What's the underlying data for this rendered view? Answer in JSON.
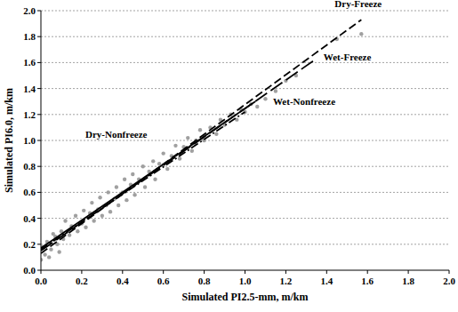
{
  "chart_data": {
    "type": "scatter",
    "x_label": "Simulated PI2.5-mm, m/km",
    "y_label": "Simulated PI6.0, m/km",
    "xlim": [
      0,
      2
    ],
    "ylim": [
      0,
      2
    ],
    "xticks": [
      {
        "value": 0,
        "label": "0.0"
      },
      {
        "value": 0.2,
        "label": "0.2"
      },
      {
        "value": 0.4,
        "label": "0.4"
      },
      {
        "value": 0.6,
        "label": "0.6"
      },
      {
        "value": 0.8,
        "label": "0.8"
      },
      {
        "value": 1,
        "label": "1.0"
      },
      {
        "value": 1.2,
        "label": "1.2"
      },
      {
        "value": 1.4,
        "label": "1.4"
      },
      {
        "value": 1.6,
        "label": "1.6"
      },
      {
        "value": 1.8,
        "label": "1.8"
      },
      {
        "value": 2,
        "label": "2.0"
      }
    ],
    "yticks": [
      {
        "value": 0,
        "label": "0.0"
      },
      {
        "value": 0.2,
        "label": "0.2"
      },
      {
        "value": 0.4,
        "label": "0.4"
      },
      {
        "value": 0.6,
        "label": "0.6"
      },
      {
        "value": 0.8,
        "label": "0.8"
      },
      {
        "value": 1,
        "label": "1.0"
      },
      {
        "value": 1.2,
        "label": "1.2"
      },
      {
        "value": 1.4,
        "label": "1.4"
      },
      {
        "value": 1.6,
        "label": "1.6"
      },
      {
        "value": 1.8,
        "label": "1.8"
      },
      {
        "value": 2,
        "label": "2.0"
      }
    ],
    "grid": "y",
    "series": [
      {
        "type": "scatter",
        "color": "#a0a0a0",
        "marker": "circle",
        "x": [
          0.02,
          0.03,
          0.05,
          0.06,
          0.08,
          0.1,
          0.11,
          0.12,
          0.14,
          0.15,
          0.17,
          0.18,
          0.2,
          0.21,
          0.22,
          0.24,
          0.25,
          0.26,
          0.28,
          0.29,
          0.3,
          0.32,
          0.33,
          0.34,
          0.36,
          0.37,
          0.38,
          0.4,
          0.41,
          0.42,
          0.44,
          0.45,
          0.46,
          0.48,
          0.5,
          0.51,
          0.53,
          0.55,
          0.56,
          0.58,
          0.6,
          0.62,
          0.64,
          0.66,
          0.68,
          0.7,
          0.72,
          0.74,
          0.76,
          0.78,
          0.8,
          0.83,
          0.86,
          0.88,
          0.9,
          0.93,
          0.96,
          0.98,
          1.0,
          1.03,
          1.06,
          1.1,
          1.15,
          1.2,
          1.25,
          1.45,
          1.57,
          0.0,
          0.01,
          0.04,
          0.07,
          0.09
        ],
        "values": [
          0.12,
          0.22,
          0.16,
          0.28,
          0.2,
          0.3,
          0.24,
          0.38,
          0.27,
          0.34,
          0.42,
          0.3,
          0.36,
          0.46,
          0.33,
          0.44,
          0.52,
          0.38,
          0.47,
          0.56,
          0.42,
          0.5,
          0.6,
          0.45,
          0.55,
          0.64,
          0.5,
          0.6,
          0.7,
          0.54,
          0.66,
          0.74,
          0.58,
          0.7,
          0.8,
          0.64,
          0.76,
          0.84,
          0.7,
          0.82,
          0.9,
          0.78,
          0.88,
          0.96,
          0.86,
          0.95,
          1.02,
          0.92,
          1.0,
          1.08,
          1.0,
          1.1,
          1.05,
          1.16,
          1.12,
          1.2,
          1.16,
          1.24,
          1.22,
          1.28,
          1.26,
          1.32,
          1.38,
          1.46,
          1.5,
          1.78,
          1.82,
          0.08,
          0.18,
          0.1,
          0.26,
          0.14
        ]
      },
      {
        "type": "line",
        "name": "Dry-Freeze",
        "color": "#000000",
        "line_style": "dashed",
        "x": [
          0,
          1.57
        ],
        "values": [
          0.13,
          1.93
        ]
      },
      {
        "type": "line",
        "name": "Wet-Freeze",
        "color": "#000000",
        "line_style": "longdash",
        "x": [
          0,
          1.35
        ],
        "values": [
          0.15,
          1.63
        ]
      },
      {
        "type": "line",
        "name": "Wet-Nonfreeze",
        "color": "#000000",
        "line_style": "solid",
        "x": [
          0,
          1.05
        ],
        "values": [
          0.17,
          1.3
        ]
      },
      {
        "type": "line",
        "name": "Dry-Nonfreeze",
        "color": "#000000",
        "line_style": "dashdot",
        "x": [
          0,
          1.0
        ],
        "values": [
          0.16,
          1.22
        ]
      }
    ]
  }
}
